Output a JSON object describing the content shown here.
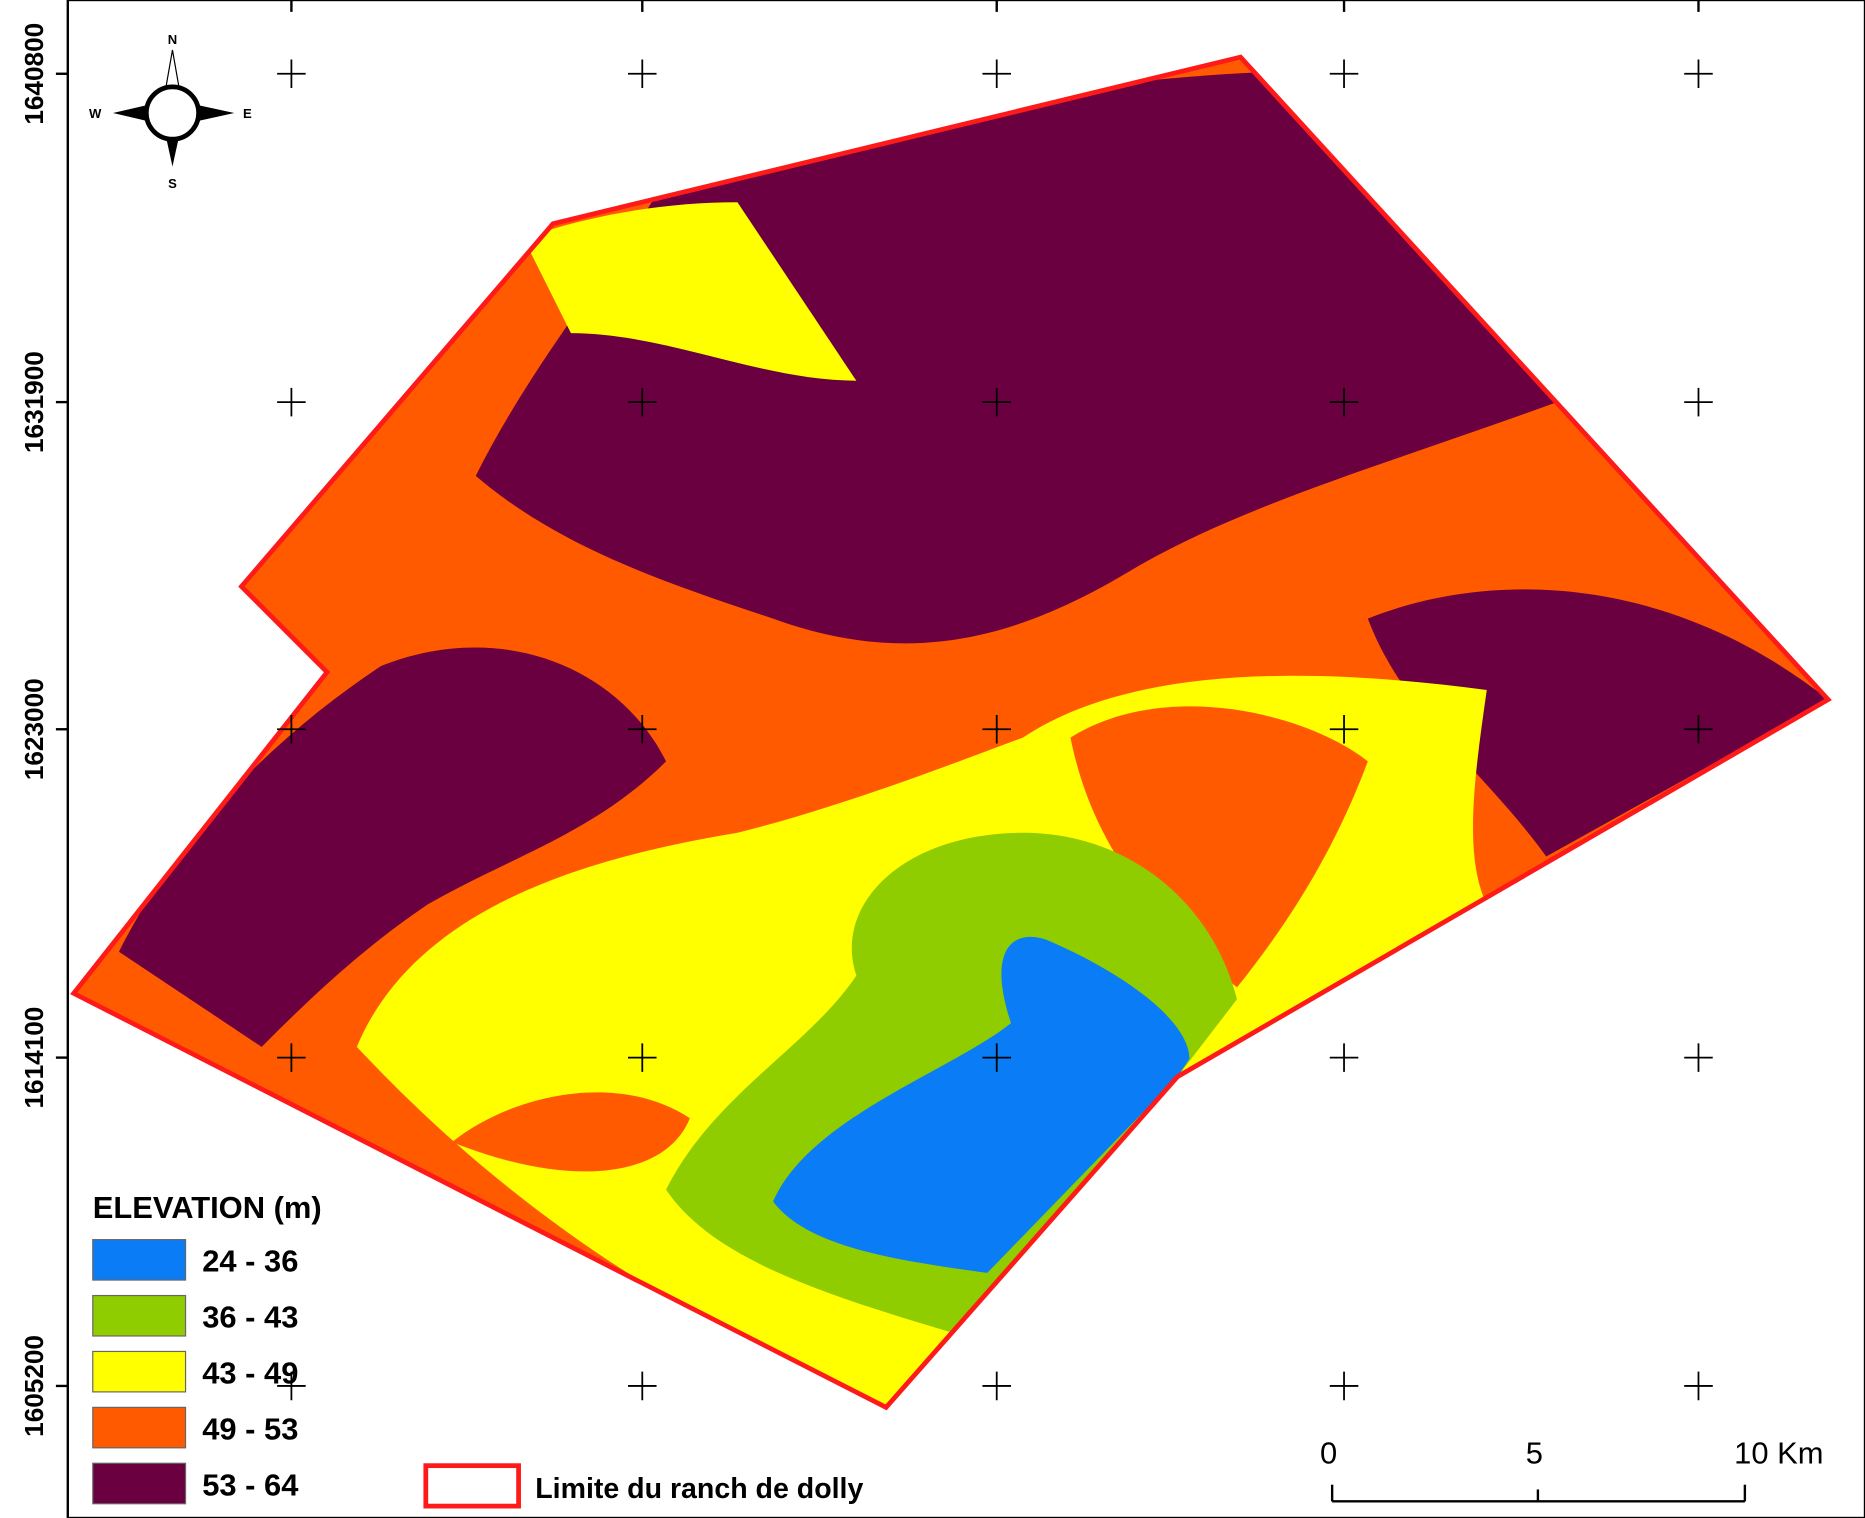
{
  "map": {
    "y_labels": [
      "1640800",
      "1631900",
      "1623000",
      "1614100",
      "1605200"
    ],
    "compass": {
      "n": "N",
      "s": "S",
      "e": "E",
      "w": "W"
    },
    "legend": {
      "title": "ELEVATION (m)",
      "items": [
        {
          "label": "24 - 36",
          "color": "#0a7cf5"
        },
        {
          "label": "36 - 43",
          "color": "#8fcc00"
        },
        {
          "label": "43 - 49",
          "color": "#ffff00"
        },
        {
          "label": "49 - 53",
          "color": "#ff5a00"
        },
        {
          "label": "53 - 64",
          "color": "#6b0040"
        }
      ]
    },
    "boundary": {
      "label": "Limite du ranch de dolly",
      "color": "#ff1a1a"
    },
    "scale_bar": {
      "labels": [
        "0",
        "5",
        "10 Km"
      ]
    }
  }
}
